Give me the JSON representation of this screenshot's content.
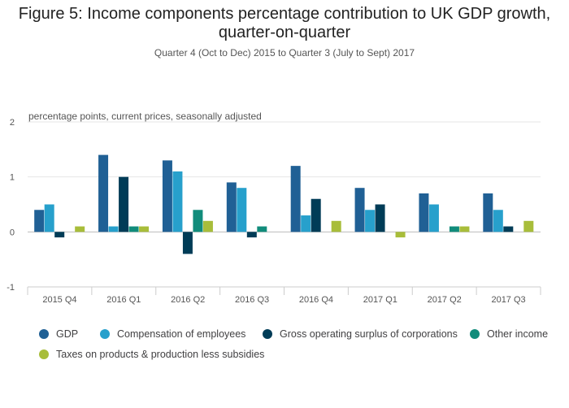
{
  "title_line1": "Figure 5: Income components percentage contribution to UK GDP growth,",
  "title_line2": "quarter-on-quarter",
  "subtitle": "Quarter 4 (Oct to Dec) 2015 to Quarter 3 (July to Sept) 2017",
  "chart_data": {
    "type": "bar",
    "title": "Figure 5: Income components percentage contribution to UK GDP growth, quarter-on-quarter",
    "subtitle": "Quarter 4 (Oct to Dec) 2015 to Quarter 3 (July to Sept) 2017",
    "ylabel": "percentage points, current prices, seasonally adjusted",
    "xlabel": "",
    "ylim": [
      -1,
      2
    ],
    "yticks": [
      "2",
      "1",
      "0",
      "-1"
    ],
    "grid": true,
    "legend_position": "bottom",
    "categories": [
      "2015 Q4",
      "2016 Q1",
      "2016 Q2",
      "2016 Q3",
      "2016 Q4",
      "2017 Q1",
      "2017 Q2",
      "2017 Q3"
    ],
    "series": [
      {
        "name": "GDP",
        "color": "#206095",
        "values": [
          0.4,
          1.4,
          1.3,
          0.9,
          1.2,
          0.8,
          0.7,
          0.7
        ]
      },
      {
        "name": "Compensation of employees",
        "color": "#27a0cc",
        "values": [
          0.5,
          0.1,
          1.1,
          0.8,
          0.3,
          0.4,
          0.5,
          0.4
        ]
      },
      {
        "name": "Gross operating surplus of corporations",
        "color": "#003c57",
        "values": [
          -0.1,
          1.0,
          -0.4,
          -0.1,
          0.6,
          0.5,
          0.0,
          0.1
        ]
      },
      {
        "name": "Other income",
        "color": "#118c7b",
        "values": [
          0.0,
          0.1,
          0.4,
          0.1,
          0.0,
          0.0,
          0.1,
          0.0
        ]
      },
      {
        "name": "Taxes on products & production less subsidies",
        "color": "#a8bd3a",
        "values": [
          0.1,
          0.1,
          0.2,
          0.0,
          0.2,
          -0.1,
          0.1,
          0.2
        ]
      }
    ]
  }
}
